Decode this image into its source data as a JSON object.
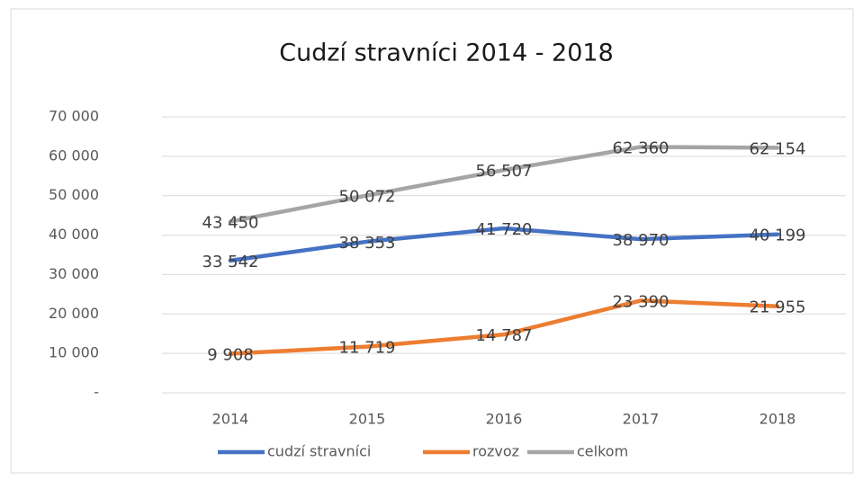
{
  "chart_data": {
    "type": "line",
    "title": "Cudzí stravníci 2014 - 2018",
    "categories": [
      "2014",
      "2015",
      "2016",
      "2017",
      "2018"
    ],
    "series": [
      {
        "name": "cudzí stravníci",
        "color": "#4472c4",
        "values": [
          33542,
          38353,
          41720,
          38970,
          40199
        ],
        "value_labels": [
          "33 542",
          "38 353",
          "41 720",
          "38 970",
          "40 199"
        ]
      },
      {
        "name": "rozvoz",
        "color": "#ed7d31",
        "values": [
          9908,
          11719,
          14787,
          23390,
          21955
        ],
        "value_labels": [
          "9 908",
          "11 719",
          "14 787",
          "23 390",
          "21 955"
        ]
      },
      {
        "name": "celkom",
        "color": "#a5a5a5",
        "values": [
          43450,
          50072,
          56507,
          62360,
          62154
        ],
        "value_labels": [
          "43 450",
          "50 072",
          "56 507",
          "62 360",
          "62 154"
        ]
      }
    ],
    "ylim": [
      0,
      70000
    ],
    "yticks": [
      {
        "value": 0,
        "label": "-"
      },
      {
        "value": 10000,
        "label": "10 000"
      },
      {
        "value": 20000,
        "label": "20 000"
      },
      {
        "value": 30000,
        "label": "30 000"
      },
      {
        "value": 40000,
        "label": "40 000"
      },
      {
        "value": 50000,
        "label": "50 000"
      },
      {
        "value": 60000,
        "label": "60 000"
      },
      {
        "value": 70000,
        "label": "70 000"
      }
    ],
    "grid": true,
    "legend": "bottom"
  }
}
